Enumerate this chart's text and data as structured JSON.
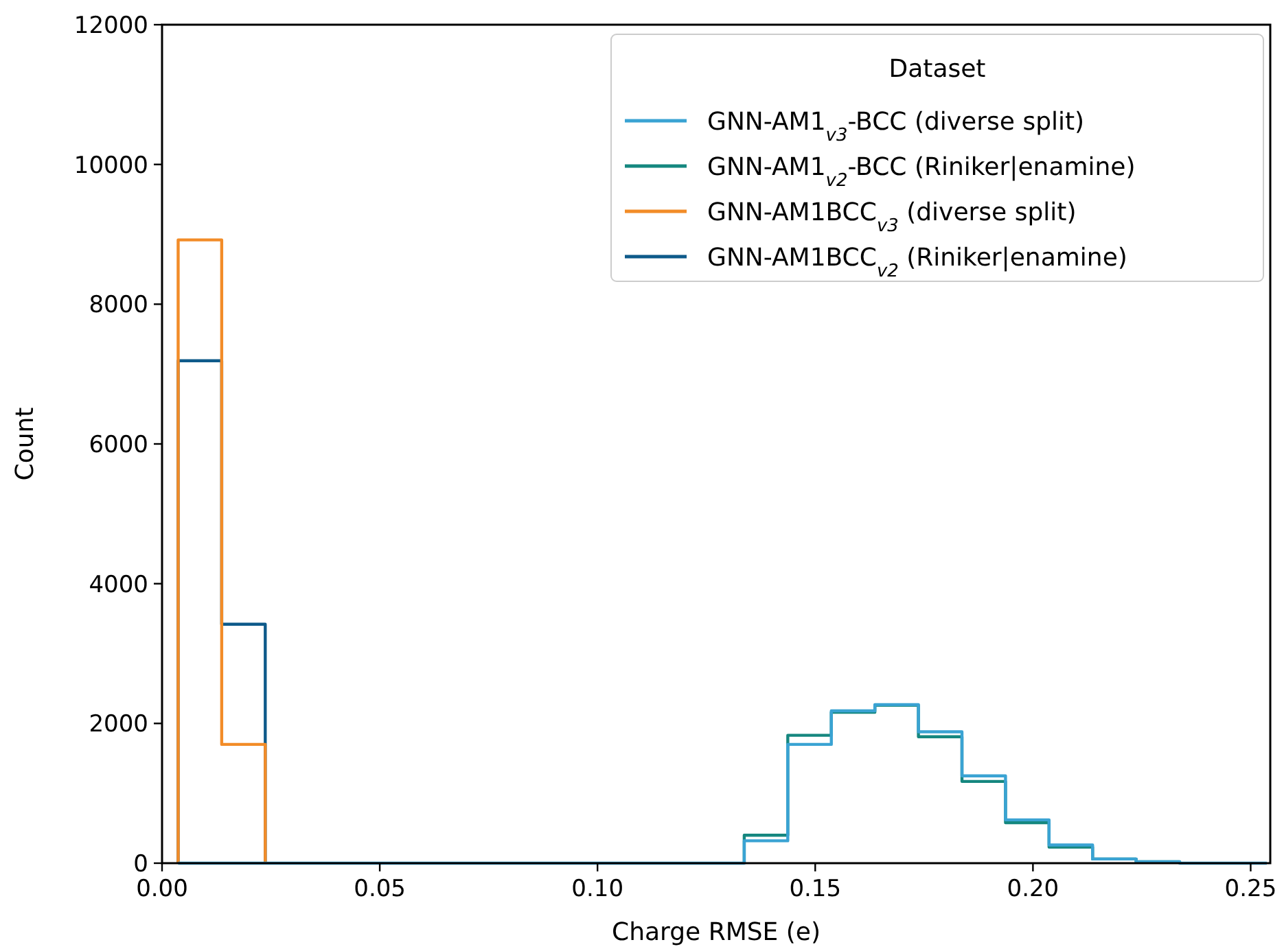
{
  "chart_data": {
    "type": "histogram",
    "xlabel": "Charge RMSE (e)",
    "ylabel": "Count",
    "legend_title": "Dataset",
    "legend": "top right",
    "bins": [
      0.0037,
      0.0137,
      0.0237,
      0.0337,
      0.0437,
      0.0537,
      0.0637,
      0.0737,
      0.0837,
      0.0937,
      0.1037,
      0.1137,
      0.1237,
      0.1337,
      0.1437,
      0.1537,
      0.1637,
      0.1737,
      0.1837,
      0.1937,
      0.2037,
      0.2137,
      0.2237,
      0.2337,
      0.2437,
      0.2537
    ],
    "series": [
      {
        "name": "GNN-AM1$_{v3}$-BCC (diverse split)",
        "color": "#3aa3d3",
        "values": [
          0,
          0,
          0,
          0,
          0,
          0,
          0,
          0,
          0,
          0,
          0,
          0,
          0,
          320,
          1700,
          2180,
          2270,
          1880,
          1250,
          620,
          260,
          60,
          20,
          0,
          0
        ]
      },
      {
        "name": "GNN-AM1$_{v2}$-BCC (Riniker|enamine)",
        "color": "#15877f",
        "bins": [
          0.1337,
          0.1437,
          0.1537,
          0.1637,
          0.1737,
          0.1837,
          0.1937,
          0.2037,
          0.2137,
          0.2237,
          0.2337
        ],
        "values": [
          400,
          1830,
          2160,
          2260,
          1810,
          1170,
          580,
          230,
          60,
          20
        ]
      },
      {
        "name": "GNN-AM1BCC$_{v3}$ (diverse split)",
        "color": "#f28c28",
        "bins": [
          0.0037,
          0.0137,
          0.0237
        ],
        "values": [
          8920,
          1700
        ]
      },
      {
        "name": "GNN-AM1BCC$_{v2}$ (Riniker|enamine)",
        "color": "#0e5a8a",
        "bins": [
          0.0037,
          0.0137,
          0.0237
        ],
        "values": [
          7190,
          3420
        ]
      }
    ],
    "xlim": [
      0,
      0.2545
    ],
    "ylim": [
      0,
      12000
    ],
    "xticks": [
      {
        "value": 0,
        "label": "0.00"
      },
      {
        "value": 0.05,
        "label": "0.05"
      },
      {
        "value": 0.1,
        "label": "0.10"
      },
      {
        "value": 0.15,
        "label": "0.15"
      },
      {
        "value": 0.2,
        "label": "0.20"
      },
      {
        "value": 0.25,
        "label": "0.25"
      }
    ],
    "yticks": [
      0,
      2000,
      4000,
      6000,
      8000,
      10000,
      12000
    ]
  }
}
